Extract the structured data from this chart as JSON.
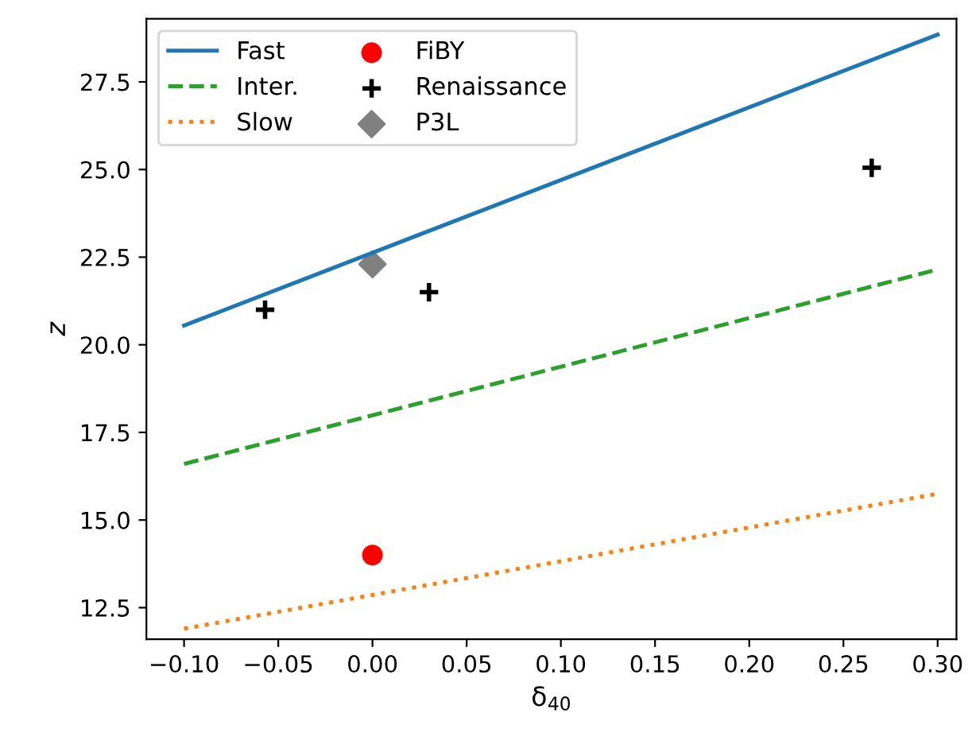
{
  "chart_data": {
    "type": "line",
    "xlabel": "δ$_{40}$",
    "ylabel": "z",
    "series": [
      {
        "name": "Fast",
        "color": "#1f77b4",
        "line_style": "solid",
        "x": [
          -0.1,
          0.3
        ],
        "values": [
          20.55,
          28.85
        ]
      },
      {
        "name": "Inter.",
        "color": "#2ca02c",
        "line_style": "dashed",
        "x": [
          -0.1,
          0.3
        ],
        "values": [
          16.6,
          22.15
        ]
      },
      {
        "name": "Slow",
        "color": "#ff7f0e",
        "line_style": "dotted",
        "x": [
          -0.1,
          0.3
        ],
        "values": [
          11.9,
          15.75
        ]
      },
      {
        "name": "FiBY",
        "type": "scatter",
        "color": "#ff0000",
        "marker": "circle",
        "x": [
          0.0
        ],
        "values": [
          14.0
        ]
      },
      {
        "name": "Renaissance",
        "type": "scatter",
        "color": "#000000",
        "marker": "cross",
        "x": [
          -0.057,
          0.03,
          0.265
        ],
        "values": [
          21.0,
          21.5,
          25.05
        ]
      },
      {
        "name": "P3L",
        "type": "scatter",
        "color": "#808080",
        "marker": "diamond",
        "x": [
          0.0
        ],
        "values": [
          22.3
        ]
      }
    ],
    "xlim": [
      -0.12,
      0.31
    ],
    "ylim": [
      11.6,
      29.3
    ],
    "xticks": [
      {
        "value": -0.1,
        "label": "−0.10"
      },
      {
        "value": -0.05,
        "label": "−0.05"
      },
      {
        "value": 0.0,
        "label": "0.00"
      },
      {
        "value": 0.05,
        "label": "0.05"
      },
      {
        "value": 0.1,
        "label": "0.10"
      },
      {
        "value": 0.15,
        "label": "0.15"
      },
      {
        "value": 0.2,
        "label": "0.20"
      },
      {
        "value": 0.25,
        "label": "0.25"
      },
      {
        "value": 0.3,
        "label": "0.30"
      }
    ],
    "yticks": [
      12.5,
      {
        "value": 15,
        "label": "15.0"
      },
      17.5,
      {
        "value": 20,
        "label": "20.0"
      },
      22.5,
      {
        "value": 25,
        "label": "25.0"
      },
      27.5
    ],
    "legend": "top left",
    "grid": false
  }
}
